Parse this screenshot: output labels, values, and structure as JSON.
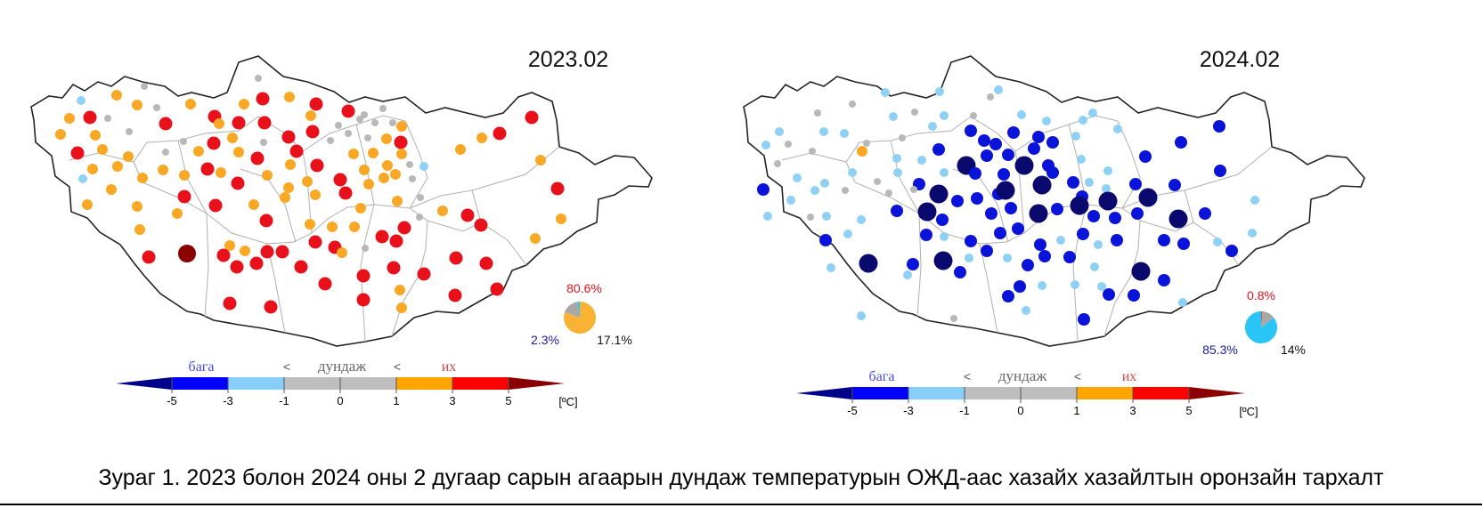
{
  "maps": [
    {
      "year_label": "2023.02",
      "pie": {
        "above_pct": "80.6%",
        "below_pct": "2.3%",
        "normal_pct": "17.1%",
        "above": 80.6,
        "below": 2.3,
        "normal": 17.1
      },
      "dominant": "warm"
    },
    {
      "year_label": "2024.02",
      "pie": {
        "above_pct": "0.8%",
        "below_pct": "85.3%",
        "normal_pct": "14%",
        "above": 0.8,
        "below": 85.3,
        "normal": 14
      },
      "dominant": "cold"
    }
  ],
  "legend": {
    "low": "бага",
    "mid": "дундаж",
    "high": "их",
    "lt": "<",
    "ticks": [
      "-5",
      "-3",
      "-1",
      "0",
      "1",
      "3",
      "5"
    ],
    "unit": "[ºC]",
    "colors": [
      "#00008b",
      "#0000ff",
      "#87cefa",
      "#bebebe",
      "#bebebe",
      "#ffa500",
      "#ff0000",
      "#8b0000"
    ]
  },
  "caption": "Зураг 1. 2023 болон 2024 оны 2 дугаар сарын агаарын дундаж температурын ОЖД-аас хазайх хазайлтын оронзайн тархалт",
  "colors": {
    "dark_red": "#8b0000",
    "red": "#e8101a",
    "orange": "#f9a825",
    "gray": "#b8b8b8",
    "light_blue": "#8fd0f5",
    "blue": "#0a14d8",
    "dark_blue": "#0a0a6e",
    "pie_above_text": "#e8101a",
    "pie_below_text": "#1a1aa0",
    "pie_orange": "#f9b233",
    "pie_cyan": "#29c5f6",
    "pie_gray": "#a8a8a8"
  }
}
